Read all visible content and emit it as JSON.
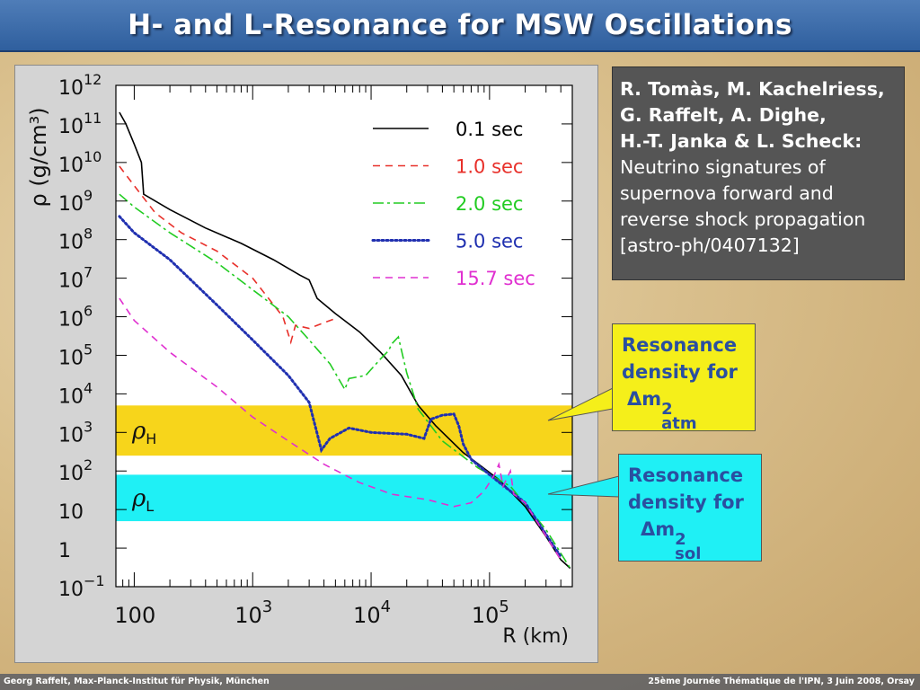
{
  "slide": {
    "title": "H- and L-Resonance for MSW Oscillations",
    "footer_left": "Georg Raffelt, Max-Planck-Institut für Physik, München",
    "footer_right": "25ème Journée Thématique de l'IPN, 3 Juin 2008, Orsay"
  },
  "reference": {
    "lines": [
      "R. Tomàs, M. Kachelriess,",
      "G. Raffelt, A. Dighe,",
      "H.-T. Janka & L. Scheck:",
      "Neutrino signatures of",
      "supernova forward and",
      "reverse shock propagation",
      "[astro-ph/0407132]"
    ]
  },
  "callouts": {
    "atm": {
      "line1": "Resonance",
      "line2": "density for",
      "symbol": "Δm",
      "sup": "2",
      "sub": "atm",
      "color": "#f5ef1a"
    },
    "sol": {
      "line1": "Resonance",
      "line2": "density for",
      "symbol": "Δm",
      "sup": "2",
      "sub": "sol",
      "color": "#1ff0f5"
    }
  },
  "chart_data": {
    "type": "line",
    "xlabel": "R (km)",
    "ylabel": "ρ (g/cm³)",
    "x_scale": "log",
    "y_scale": "log",
    "xlim": [
      70,
      500000
    ],
    "ylim": [
      0.1,
      1000000000000.0
    ],
    "x_ticks": [
      {
        "value": 100,
        "base": "100",
        "exp": ""
      },
      {
        "value": 1000,
        "base": "10",
        "exp": "3"
      },
      {
        "value": 10000,
        "base": "10",
        "exp": "4"
      },
      {
        "value": 100000,
        "base": "10",
        "exp": "5"
      }
    ],
    "y_ticks": [
      {
        "value": 1000000000000.0,
        "base": "10",
        "exp": "12"
      },
      {
        "value": 100000000000.0,
        "base": "10",
        "exp": "11"
      },
      {
        "value": 10000000000.0,
        "base": "10",
        "exp": "10"
      },
      {
        "value": 1000000000.0,
        "base": "10",
        "exp": "9"
      },
      {
        "value": 100000000.0,
        "base": "10",
        "exp": "8"
      },
      {
        "value": 10000000.0,
        "base": "10",
        "exp": "7"
      },
      {
        "value": 1000000.0,
        "base": "10",
        "exp": "6"
      },
      {
        "value": 100000.0,
        "base": "10",
        "exp": "5"
      },
      {
        "value": 10000.0,
        "base": "10",
        "exp": "4"
      },
      {
        "value": 1000.0,
        "base": "10",
        "exp": "3"
      },
      {
        "value": 100.0,
        "base": "10",
        "exp": "2"
      },
      {
        "value": 10,
        "base": "10",
        "exp": ""
      },
      {
        "value": 1,
        "base": "1",
        "exp": ""
      },
      {
        "value": 0.1,
        "base": "10",
        "exp": "−1"
      }
    ],
    "bands": [
      {
        "name": "ρH",
        "symbol": "ρ",
        "subscript": "H",
        "y_range": [
          250,
          5000
        ],
        "color": "#f7d51b"
      },
      {
        "name": "ρL",
        "symbol": "ρ",
        "subscript": "L",
        "y_range": [
          5,
          80
        ],
        "color": "#1ff0f5"
      }
    ],
    "series": [
      {
        "name": "0.1 sec",
        "color": "#000000",
        "dash": "solid",
        "points": [
          [
            75,
            200000000000.0
          ],
          [
            85,
            100000000000.0
          ],
          [
            100,
            30000000000.0
          ],
          [
            115,
            10000000000.0
          ],
          [
            120,
            1500000000.0
          ],
          [
            200,
            600000000.0
          ],
          [
            400,
            200000000.0
          ],
          [
            800,
            80000000.0
          ],
          [
            1500,
            30000000.0
          ],
          [
            2500,
            12000000.0
          ],
          [
            3000,
            9000000.0
          ],
          [
            3500,
            3000000.0
          ],
          [
            5000,
            1200000.0
          ],
          [
            8000,
            400000.0
          ],
          [
            12000,
            120000.0
          ],
          [
            18000,
            30000.0
          ],
          [
            25000,
            5000
          ],
          [
            35000,
            1500
          ],
          [
            60000,
            300
          ],
          [
            120000,
            60
          ],
          [
            200000,
            12
          ],
          [
            300000,
            2
          ],
          [
            400000,
            0.5
          ],
          [
            480000,
            0.3
          ]
        ]
      },
      {
        "name": "1.0 sec",
        "color": "#e8302a",
        "dash": "8 6",
        "points": [
          [
            75,
            8000000000.0
          ],
          [
            100,
            2500000000.0
          ],
          [
            150,
            500000000.0
          ],
          [
            250,
            150000000.0
          ],
          [
            500,
            50000000.0
          ],
          [
            1000,
            10000000.0
          ],
          [
            1800,
            1000000.0
          ],
          [
            2100,
            220000.0
          ],
          [
            2300,
            600000.0
          ],
          [
            3000,
            500000.0
          ],
          [
            4000,
            700000.0
          ],
          [
            5000,
            900000.0
          ]
        ]
      },
      {
        "name": "2.0 sec",
        "color": "#22cc22",
        "dash": "12 4 3 4",
        "points": [
          [
            75,
            1500000000.0
          ],
          [
            100,
            700000000.0
          ],
          [
            200,
            150000000.0
          ],
          [
            500,
            25000000.0
          ],
          [
            1000,
            5000000.0
          ],
          [
            2000,
            1000000.0
          ],
          [
            3000,
            250000.0
          ],
          [
            4500,
            60000.0
          ],
          [
            6000,
            13000.0
          ],
          [
            6500,
            25000.0
          ],
          [
            9000,
            30000.0
          ],
          [
            12000,
            80000.0
          ],
          [
            14000,
            130000.0
          ],
          [
            15000,
            200000.0
          ],
          [
            17000,
            300000.0
          ],
          [
            20000,
            35000.0
          ],
          [
            25000,
            4000
          ],
          [
            40000,
            600
          ],
          [
            80000,
            120
          ],
          [
            150000,
            40
          ],
          [
            300000,
            3
          ],
          [
            480000,
            0.3
          ]
        ]
      },
      {
        "name": "5.0 sec",
        "color": "#2030b0",
        "dash": "2 3",
        "points": [
          [
            75,
            400000000.0
          ],
          [
            100,
            150000000.0
          ],
          [
            200,
            30000000.0
          ],
          [
            500,
            2000000.0
          ],
          [
            1000,
            250000.0
          ],
          [
            2000,
            30000.0
          ],
          [
            3000,
            6000
          ],
          [
            3800,
            350
          ],
          [
            4500,
            700
          ],
          [
            6500,
            1300
          ],
          [
            10000,
            1000
          ],
          [
            20000,
            900
          ],
          [
            28000,
            700
          ],
          [
            32000,
            2200
          ],
          [
            40000,
            2800
          ],
          [
            50000,
            3000
          ],
          [
            55000,
            1500
          ],
          [
            60000,
            500
          ],
          [
            70000,
            200
          ],
          [
            100000,
            80
          ],
          [
            200000,
            15
          ],
          [
            400000,
            0.6
          ]
        ]
      },
      {
        "name": "15.7 sec",
        "color": "#e030d0",
        "dash": "8 6",
        "points": [
          [
            75,
            3000000.0
          ],
          [
            100,
            800000.0
          ],
          [
            200,
            120000.0
          ],
          [
            500,
            15000.0
          ],
          [
            1000,
            2500
          ],
          [
            2000,
            600
          ],
          [
            4000,
            150
          ],
          [
            8000,
            50
          ],
          [
            15000,
            25
          ],
          [
            30000,
            18
          ],
          [
            50000,
            12
          ],
          [
            70000,
            15
          ],
          [
            90000,
            30
          ],
          [
            110000,
            80
          ],
          [
            120000,
            150
          ],
          [
            130000,
            40
          ],
          [
            150000,
            100
          ],
          [
            160000,
            25
          ],
          [
            200000,
            15
          ],
          [
            400000,
            0.5
          ]
        ]
      }
    ]
  }
}
